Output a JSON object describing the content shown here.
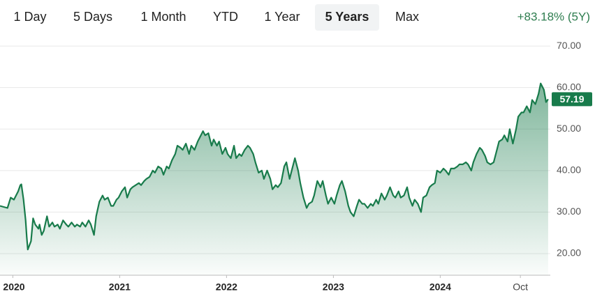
{
  "range_tabs": [
    "1 Day",
    "5 Days",
    "1 Month",
    "YTD",
    "1 Year",
    "5 Years",
    "Max"
  ],
  "selected_tab": 5,
  "change": "+83.18% (5Y)",
  "chart_data": {
    "type": "line",
    "x": [
      2019.88,
      2019.95,
      2019.98,
      2020.01,
      2020.05,
      2020.07,
      2020.08,
      2020.1,
      2020.12,
      2020.13,
      2020.14,
      2020.17,
      2020.19,
      2020.21,
      2020.24,
      2020.25,
      2020.27,
      2020.29,
      2020.32,
      2020.34,
      2020.37,
      2020.39,
      2020.42,
      2020.44,
      2020.47,
      2020.5,
      2020.52,
      2020.55,
      2020.58,
      2020.6,
      2020.63,
      2020.65,
      2020.68,
      2020.71,
      2020.73,
      2020.76,
      2020.78,
      2020.81,
      2020.84,
      2020.86,
      2020.89,
      2020.92,
      2020.94,
      2020.97,
      2020.99,
      2021.02,
      2021.05,
      2021.07,
      2021.1,
      2021.12,
      2021.15,
      2021.18,
      2021.2,
      2021.23,
      2021.25,
      2021.28,
      2021.31,
      2021.33,
      2021.36,
      2021.39,
      2021.41,
      2021.44,
      2021.46,
      2021.49,
      2021.52,
      2021.54,
      2021.57,
      2021.59,
      2021.62,
      2021.65,
      2021.67,
      2021.7,
      2021.73,
      2021.75,
      2021.78,
      2021.8,
      2021.83,
      2021.86,
      2021.88,
      2021.91,
      2021.93,
      2021.96,
      2021.99,
      2022.01,
      2022.04,
      2022.07,
      2022.09,
      2022.12,
      2022.14,
      2022.17,
      2022.2,
      2022.22,
      2022.25,
      2022.27,
      2022.3,
      2022.33,
      2022.35,
      2022.38,
      2022.41,
      2022.43,
      2022.46,
      2022.48,
      2022.51,
      2022.54,
      2022.56,
      2022.59,
      2022.61,
      2022.64,
      2022.67,
      2022.69,
      2022.72,
      2022.75,
      2022.77,
      2022.8,
      2022.82,
      2022.85,
      2022.88,
      2022.9,
      2022.93,
      2022.95,
      2022.98,
      2023.01,
      2023.03,
      2023.06,
      2023.08,
      2023.11,
      2023.14,
      2023.16,
      2023.19,
      2023.22,
      2023.24,
      2023.27,
      2023.29,
      2023.32,
      2023.35,
      2023.37,
      2023.4,
      2023.42,
      2023.45,
      2023.48,
      2023.5,
      2023.53,
      2023.56,
      2023.58,
      2023.61,
      2023.63,
      2023.66,
      2023.69,
      2023.71,
      2023.74,
      2023.76,
      2023.79,
      2023.82,
      2023.84,
      2023.87,
      2023.9,
      2023.92,
      2023.95,
      2023.97,
      2024.0,
      2024.03,
      2024.05,
      2024.08,
      2024.1,
      2024.13,
      2024.16,
      2024.18,
      2024.21,
      2024.24,
      2024.26,
      2024.29,
      2024.31,
      2024.34,
      2024.37,
      2024.39,
      2024.42,
      2024.44,
      2024.47,
      2024.5,
      2024.52,
      2024.55,
      2024.58,
      2024.6,
      2024.63,
      2024.65,
      2024.68,
      2024.71,
      2024.73,
      2024.76,
      2024.78,
      2024.81,
      2024.84,
      2024.86,
      2024.89,
      2024.92,
      2024.94,
      2024.97,
      2024.99,
      2025.01
    ],
    "series": [
      {
        "color": "#187b4b",
        "values": [
          31.5,
          31,
          33.5,
          33,
          35,
          36.5,
          36.7,
          33,
          28,
          24,
          21,
          23,
          28.5,
          27,
          26,
          27,
          24.5,
          25.5,
          29,
          26.5,
          27.5,
          26.5,
          27,
          26,
          28,
          27,
          26.5,
          27.5,
          26.5,
          27,
          26.5,
          27.5,
          26.5,
          28,
          27,
          24.5,
          29,
          32.5,
          34,
          33,
          33.5,
          31.5,
          31.5,
          33,
          33.5,
          35,
          36,
          33.5,
          35.5,
          36,
          36.5,
          37,
          36.5,
          37.5,
          38,
          38.5,
          40,
          39.5,
          41,
          40.5,
          39,
          41,
          40.5,
          42.5,
          44,
          46,
          45.5,
          45,
          46.5,
          44,
          46,
          45,
          47,
          48,
          49.5,
          48.5,
          49,
          46,
          47.5,
          46,
          47,
          44,
          45.5,
          44,
          43,
          46,
          43,
          44,
          43.5,
          45,
          46,
          45.5,
          44,
          42,
          39.5,
          40,
          38,
          40,
          38,
          35.5,
          36.5,
          36,
          37,
          41,
          42,
          38,
          40,
          43,
          40,
          37,
          33.5,
          31,
          32,
          32.5,
          34,
          37.5,
          36,
          37.5,
          34,
          32,
          33.5,
          32,
          34,
          36.5,
          37.5,
          35,
          31.5,
          30,
          29,
          31.5,
          33,
          32,
          32,
          31,
          32,
          31.5,
          33,
          32,
          34.5,
          33,
          34,
          36,
          34,
          33.5,
          35,
          33.5,
          34,
          36,
          33.5,
          31.5,
          33,
          32,
          30,
          33.5,
          34,
          36,
          36.5,
          37,
          40,
          39.5,
          40.5,
          40,
          39,
          40.5,
          40.5,
          41,
          41.5,
          41.5,
          42,
          41.5,
          40,
          42,
          44,
          45.5,
          45,
          43.5,
          42,
          41.5,
          42,
          44,
          47,
          47.5,
          48.5,
          47,
          50,
          46.5,
          50,
          53,
          54,
          54,
          55.5,
          54,
          57,
          56,
          58.5,
          61,
          59.5,
          56.5,
          57.19
        ]
      }
    ],
    "xlim": [
      2019.88,
      2025.03
    ],
    "xticks": [
      2020,
      2021,
      2022,
      2023,
      2024,
      {
        "value": 2024.75,
        "label": "Oct"
      }
    ],
    "ylim": [
      14.8,
      72.7
    ],
    "yticks": [
      {
        "value": 20,
        "label": "20.00"
      },
      {
        "value": 30,
        "label": "30.00"
      },
      {
        "value": 40,
        "label": "40.00"
      },
      {
        "value": 50,
        "label": "50.00"
      },
      {
        "value": 60,
        "label": "60.00"
      },
      {
        "value": 70,
        "label": "70.00"
      }
    ],
    "grid": true
  }
}
